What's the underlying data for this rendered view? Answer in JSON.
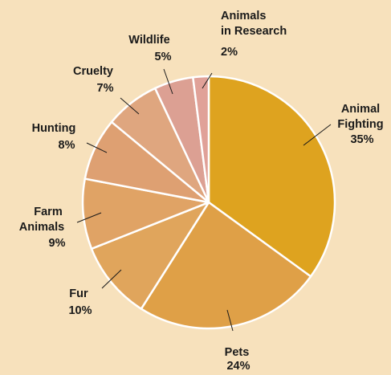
{
  "chart_data": {
    "type": "pie",
    "title": "",
    "start_angle_deg": 0,
    "direction": "clockwise",
    "slices": [
      {
        "label_lines": [
          "Animal",
          "Fighting",
          "35%"
        ],
        "value": 35,
        "color": "#dea31f"
      },
      {
        "label_lines": [
          "Pets",
          "24%"
        ],
        "value": 24,
        "color": "#dfa047"
      },
      {
        "label_lines": [
          "Fur",
          "10%"
        ],
        "value": 10,
        "color": "#e0a55c"
      },
      {
        "label_lines": [
          "Farm",
          "Animals",
          "9%"
        ],
        "value": 9,
        "color": "#e0a365"
      },
      {
        "label_lines": [
          "Hunting",
          "8%"
        ],
        "value": 8,
        "color": "#dea072"
      },
      {
        "label_lines": [
          "Cruelty",
          "7%"
        ],
        "value": 7,
        "color": "#dfa67f"
      },
      {
        "label_lines": [
          "Wildlife",
          "5%"
        ],
        "value": 5,
        "color": "#dca093"
      },
      {
        "label_lines": [
          "Animals",
          "in Research",
          "2%"
        ],
        "value": 2,
        "color": "#e0a198"
      }
    ]
  },
  "colors": {
    "background": "#f7e1bc",
    "slice_border": "#ffffff",
    "leader_line": "#1a1a1a"
  }
}
